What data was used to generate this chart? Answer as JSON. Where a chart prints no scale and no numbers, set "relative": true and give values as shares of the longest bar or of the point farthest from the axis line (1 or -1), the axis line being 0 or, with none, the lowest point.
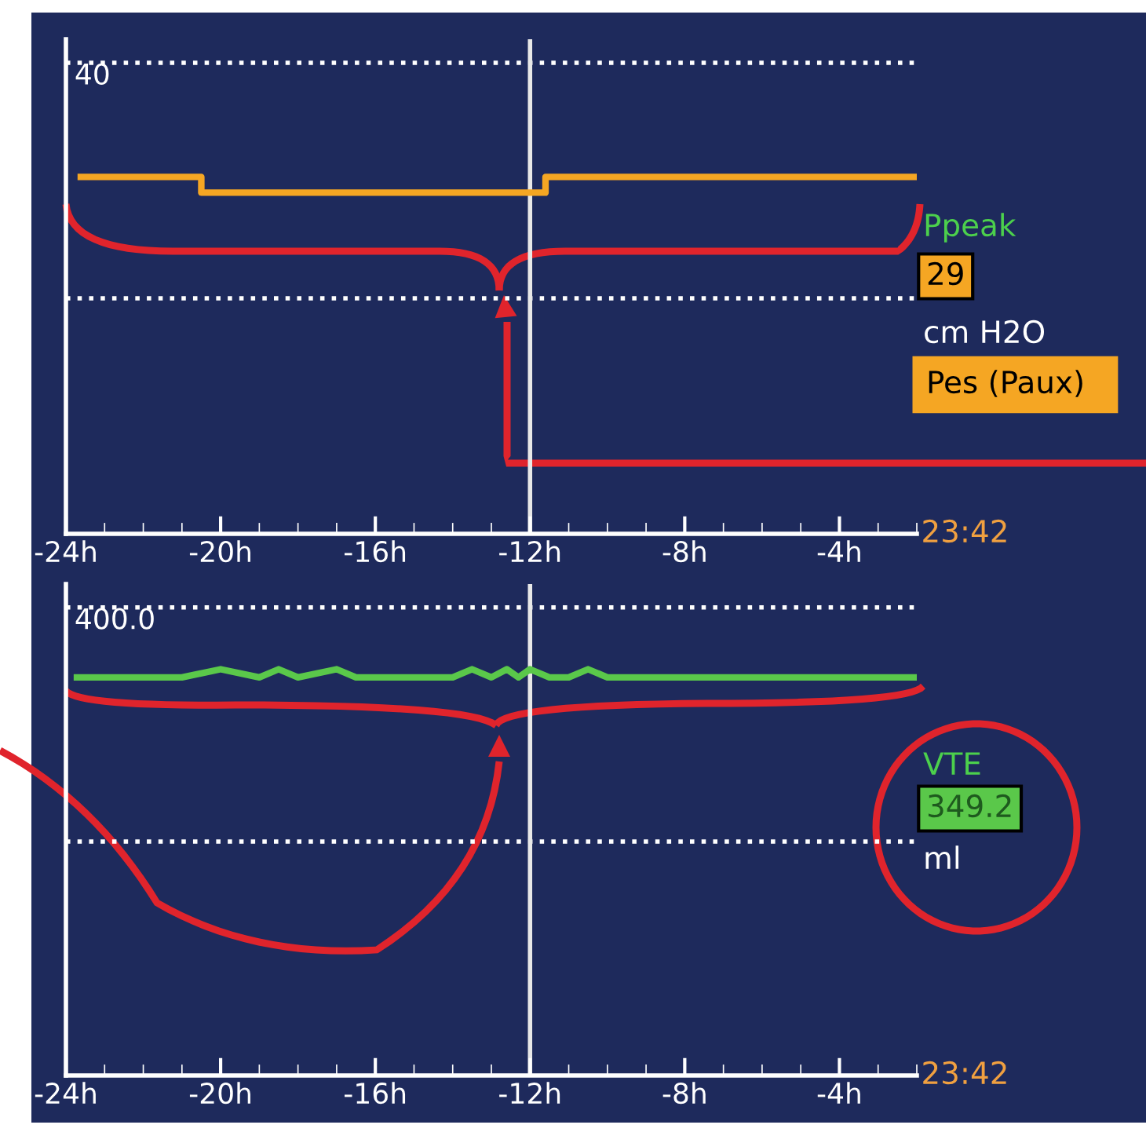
{
  "chart_data": [
    {
      "type": "line",
      "relative": true,
      "xlim": [
        -24,
        -2
      ],
      "xticks": [
        {
          "value": -24,
          "label": "-24h"
        },
        {
          "value": -20,
          "label": "-20h"
        },
        {
          "value": -16,
          "label": "-16h"
        },
        {
          "value": -12,
          "label": "-12h"
        },
        {
          "value": -8,
          "label": "-8h"
        },
        {
          "value": -4,
          "label": "-4h"
        }
      ],
      "series": [
        {
          "name": "Ppeak",
          "color": "#f5a623",
          "x": [
            -23.7,
            -20.5,
            -20.5,
            -12.2,
            -11.6,
            -11.6,
            -2
          ],
          "values": [
            1,
            1,
            0.956,
            0.956,
            0.956,
            1,
            1
          ]
        }
      ],
      "ref_lines": [
        {
          "axis": "y",
          "value": 1.32,
          "line_style": "dotted",
          "color": "#ffffff"
        },
        {
          "axis": "y",
          "value": 0.66,
          "line_style": "dotted",
          "color": "#ffffff"
        },
        {
          "axis": "x",
          "value": -12,
          "line_style": "solid",
          "color": "#e8e8e8"
        }
      ],
      "annotations": [
        "40",
        "23:42",
        "29",
        "cm H2O",
        "Pes (Paux)"
      ],
      "grid": false,
      "legend": false,
      "marker": "none",
      "line_style": "solid"
    },
    {
      "type": "line",
      "relative": true,
      "xlim": [
        -24,
        -2
      ],
      "xticks": [
        {
          "value": -24,
          "label": "-24h"
        },
        {
          "value": -20,
          "label": "-20h"
        },
        {
          "value": -16,
          "label": "-16h"
        },
        {
          "value": -12,
          "label": "-12h"
        },
        {
          "value": -8,
          "label": "-8h"
        },
        {
          "value": -4,
          "label": "-4h"
        }
      ],
      "series": [
        {
          "name": "VTE",
          "color": "#5ac84a",
          "x": [
            -23.8,
            -23.0,
            -22.0,
            -21.0,
            -20.0,
            -19.0,
            -18.5,
            -18.0,
            -17.0,
            -16.5,
            -16.0,
            -15.0,
            -14.0,
            -13.5,
            -13.0,
            -12.6,
            -12.3,
            -12.0,
            -11.5,
            -11.0,
            -10.5,
            -10.0,
            -9.0,
            -8.0,
            -7.0,
            -6.0,
            -5.0,
            -4.0,
            -3.0,
            -2.5,
            -2.0
          ],
          "values": [
            0.98,
            0.98,
            0.98,
            0.98,
            1,
            0.98,
            1,
            0.98,
            1,
            0.98,
            0.98,
            0.98,
            0.98,
            1,
            0.98,
            1,
            0.98,
            1,
            0.98,
            0.98,
            1,
            0.98,
            0.98,
            0.98,
            0.98,
            0.98,
            0.98,
            0.98,
            0.98,
            0.98,
            0.98
          ]
        }
      ],
      "ref_lines": [
        {
          "axis": "y",
          "value": 1.152,
          "line_style": "dotted",
          "color": "#ffffff"
        },
        {
          "axis": "y",
          "value": 0.576,
          "line_style": "dotted",
          "color": "#ffffff"
        },
        {
          "axis": "x",
          "value": -12,
          "line_style": "solid",
          "color": "#e8e8e8"
        }
      ],
      "annotations": [
        "400.0",
        "23:42",
        "349.2",
        "ml"
      ],
      "grid": false,
      "legend": false,
      "marker": "none",
      "line_style": "solid"
    }
  ]
}
